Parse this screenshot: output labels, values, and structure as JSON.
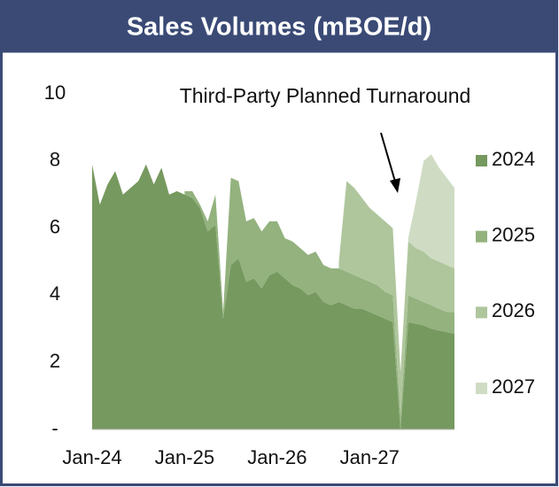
{
  "chart_data": {
    "type": "stacked-area",
    "title": "Sales Volumes (mBOE/d)",
    "annotation": "Third-Party Planned Turnaround",
    "categories": [
      "Jan-24",
      null,
      null,
      null,
      null,
      null,
      null,
      null,
      null,
      null,
      null,
      null,
      "Jan-25",
      null,
      null,
      null,
      null,
      null,
      null,
      null,
      null,
      null,
      null,
      null,
      "Jan-26",
      null,
      null,
      null,
      null,
      null,
      null,
      null,
      null,
      null,
      null,
      null,
      "Jan-27",
      null,
      null,
      null,
      null,
      null,
      null,
      null,
      null,
      null,
      null,
      null
    ],
    "ylim": [
      0,
      10
    ],
    "yticks": [
      {
        "value": 0,
        "label": "-"
      },
      2,
      4,
      6,
      8,
      10
    ],
    "legend": "right",
    "series": [
      {
        "name": "2024",
        "color": "#76995f",
        "values": [
          7.9,
          6.7,
          7.3,
          7.7,
          7.0,
          7.2,
          7.4,
          7.9,
          7.3,
          7.8,
          7.0,
          7.1,
          7.0,
          6.9,
          6.6,
          5.9,
          6.1,
          3.3,
          4.9,
          5.1,
          4.4,
          4.5,
          4.2,
          4.6,
          4.7,
          4.5,
          4.3,
          4.2,
          4.0,
          4.1,
          3.8,
          3.7,
          3.8,
          3.7,
          3.6,
          3.6,
          3.5,
          3.4,
          3.3,
          3.2,
          0,
          3.2,
          3.15,
          3.1,
          3.0,
          2.95,
          2.9,
          2.85
        ]
      },
      {
        "name": "2025",
        "color": "#93b27e",
        "values": [
          null,
          null,
          null,
          null,
          null,
          null,
          null,
          null,
          null,
          null,
          null,
          null,
          0.1,
          0.2,
          0.1,
          0.3,
          0.9,
          0.2,
          2.6,
          2.3,
          1.8,
          1.8,
          1.7,
          1.6,
          1.5,
          1.2,
          1.3,
          1.2,
          1.2,
          1.2,
          1.1,
          1.1,
          1.0,
          1.0,
          1.0,
          0.9,
          0.9,
          0.9,
          0.8,
          0.8,
          0.4,
          0.8,
          0.75,
          0.7,
          0.7,
          0.65,
          0.6,
          0.65
        ]
      },
      {
        "name": "2026",
        "color": "#afc69d",
        "values": [
          null,
          null,
          null,
          null,
          null,
          null,
          null,
          null,
          null,
          null,
          null,
          null,
          null,
          null,
          null,
          null,
          null,
          null,
          null,
          null,
          null,
          null,
          null,
          null,
          null,
          null,
          null,
          null,
          null,
          null,
          null,
          null,
          0.2,
          2.7,
          2.6,
          2.4,
          2.2,
          2.1,
          2.1,
          2.0,
          1.3,
          1.6,
          1.5,
          1.5,
          1.4,
          1.4,
          1.4,
          1.3
        ]
      },
      {
        "name": "2027",
        "color": "#cfdcc3",
        "values": [
          null,
          null,
          null,
          null,
          null,
          null,
          null,
          null,
          null,
          null,
          null,
          null,
          null,
          null,
          null,
          null,
          null,
          null,
          null,
          null,
          null,
          null,
          null,
          null,
          null,
          null,
          null,
          null,
          null,
          null,
          null,
          null,
          null,
          null,
          null,
          null,
          null,
          null,
          null,
          null,
          null,
          0.1,
          1.4,
          2.7,
          3.1,
          2.8,
          2.6,
          2.4
        ]
      }
    ]
  }
}
